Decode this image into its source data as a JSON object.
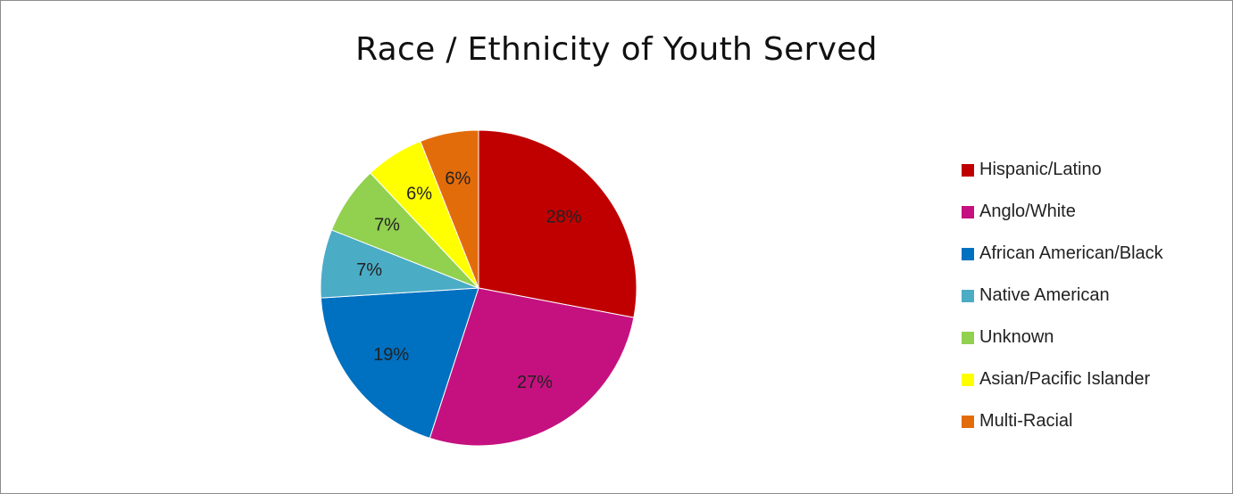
{
  "chart_data": {
    "type": "pie",
    "title": "Race / Ethnicity of Youth Served",
    "categories": [
      "Hispanic/Latino",
      "Anglo/White",
      "African American/Black",
      "Native American",
      "Unknown",
      "Asian/Pacific Islander",
      "Multi-Racial"
    ],
    "values": [
      28,
      27,
      19,
      7,
      7,
      6,
      6
    ],
    "data_labels": [
      "28%",
      "27%",
      "19%",
      "7%",
      "7%",
      "6%",
      "6%"
    ],
    "colors": [
      "#c00000",
      "#c5117f",
      "#0070c0",
      "#4bacc6",
      "#92d050",
      "#ffff00",
      "#e36c0a"
    ],
    "legend_position": "right",
    "start_angle": "12 o'clock, clockwise"
  }
}
